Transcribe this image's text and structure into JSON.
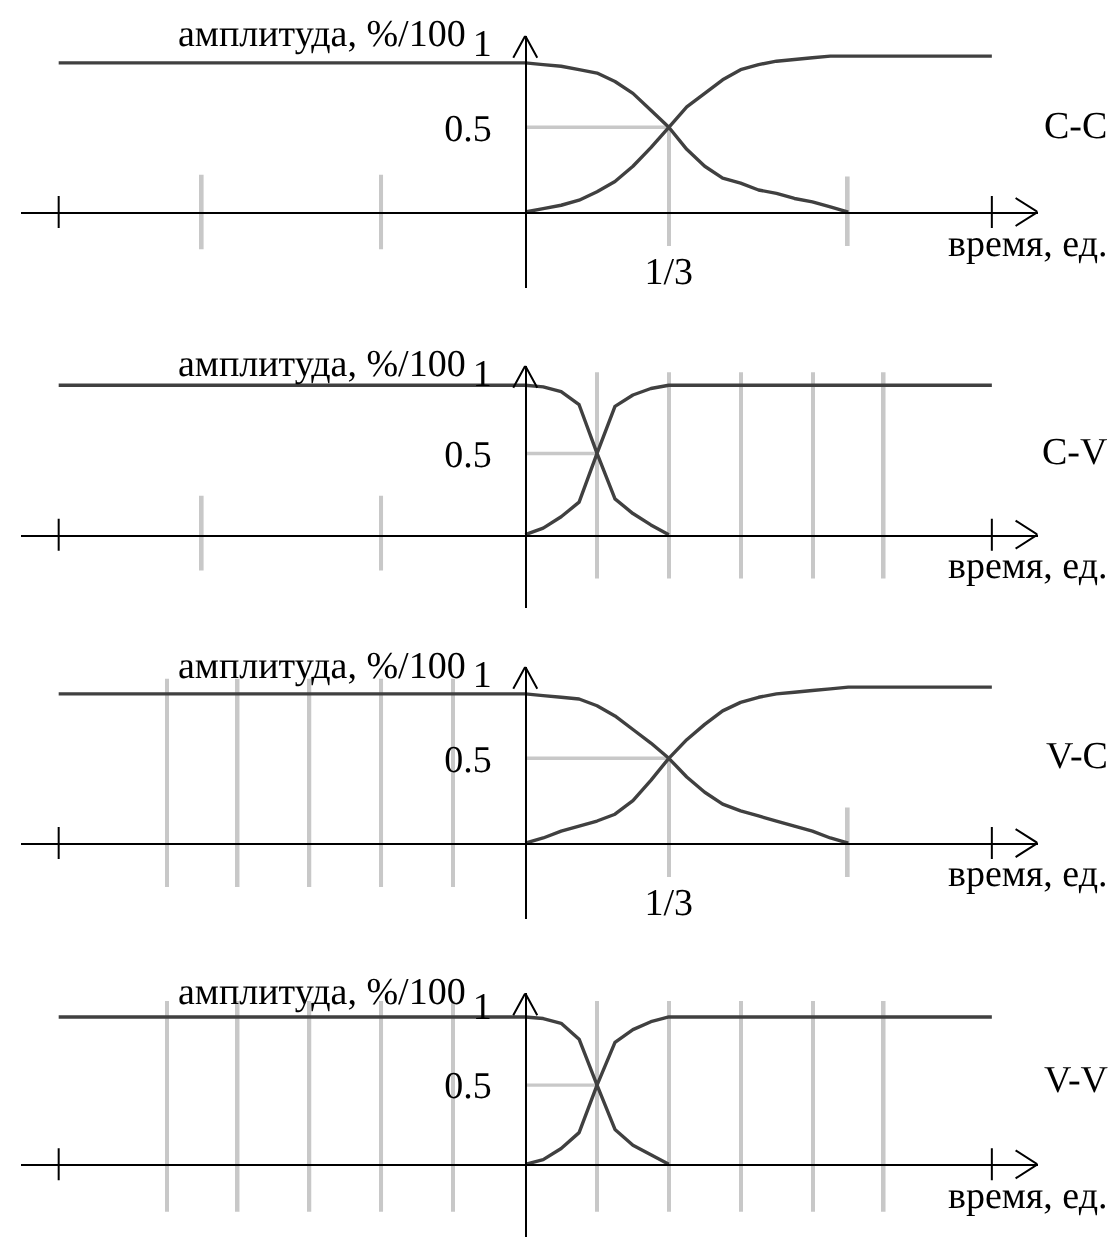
{
  "chart_data": [
    {
      "type": "line",
      "annotations": [
        "C-C"
      ],
      "xlabel": "время, ед.",
      "ylabel": "амплитуда, %/100",
      "ylim": [
        -0.45,
        1.04
      ],
      "yticks": [
        0.5,
        1
      ],
      "grid": false,
      "categories": [
        null,
        null,
        null,
        null,
        null,
        null,
        null,
        null,
        null,
        null,
        null,
        null,
        null,
        null,
        null,
        null,
        null,
        null,
        null,
        null,
        null,
        null,
        null,
        null,
        null,
        null,
        null,
        null,
        null,
        null,
        null,
        null,
        null,
        null,
        "1/3",
        null,
        null,
        null,
        null,
        null,
        null,
        null,
        null,
        null,
        null,
        null,
        null,
        null,
        null,
        null,
        null,
        null,
        null
      ],
      "series": [
        {
          "type": "bar",
          "color": "#c8c8c8",
          "values": [
            null,
            null,
            null,
            null,
            null,
            null,
            null,
            null,
            0.44,
            null,
            null,
            null,
            null,
            null,
            null,
            null,
            null,
            null,
            0.44,
            null,
            null,
            null,
            null,
            null,
            null,
            null,
            null,
            null,
            null,
            null,
            null,
            null,
            null,
            null,
            0.7,
            null,
            null,
            null,
            null,
            null,
            null,
            null,
            null,
            null,
            0.41,
            null,
            null,
            null,
            null,
            null,
            null,
            null,
            null
          ],
          "base": [
            null,
            null,
            null,
            null,
            null,
            null,
            null,
            null,
            -0.22,
            null,
            null,
            null,
            null,
            null,
            null,
            null,
            null,
            null,
            -0.22,
            null,
            null,
            null,
            null,
            null,
            null,
            null,
            null,
            null,
            null,
            null,
            null,
            null,
            null,
            null,
            -0.2,
            null,
            null,
            null,
            null,
            null,
            null,
            null,
            null,
            null,
            -0.2,
            null,
            null,
            null,
            null,
            null,
            null,
            null,
            null
          ]
        },
        {
          "type": "line",
          "color": "#c8c8c8",
          "values": [
            null,
            null,
            null,
            null,
            null,
            null,
            null,
            null,
            null,
            null,
            null,
            null,
            null,
            null,
            null,
            null,
            null,
            null,
            null,
            null,
            null,
            null,
            null,
            null,
            null,
            null,
            0.5,
            0.5,
            0.5,
            0.5,
            0.5,
            0.5,
            0.5,
            0.5,
            0.5,
            null,
            null,
            null,
            null,
            null,
            null,
            null,
            null,
            null,
            null,
            null,
            null,
            null,
            null,
            null,
            null,
            null,
            null
          ]
        },
        {
          "color": "#404040",
          "values": [
            0.88,
            0.88,
            0.88,
            0.88,
            0.88,
            0.88,
            0.88,
            0.88,
            0.88,
            0.88,
            0.88,
            0.88,
            0.88,
            0.88,
            0.88,
            0.88,
            0.88,
            0.88,
            0.88,
            0.88,
            0.88,
            0.88,
            0.88,
            0.88,
            0.88,
            0.88,
            0.88,
            0.87,
            0.86,
            0.84,
            0.82,
            0.77,
            0.7,
            0.6,
            0.5,
            0.37,
            0.27,
            0.2,
            0.17,
            0.13,
            0.11,
            0.08,
            0.06,
            0.03,
            0,
            null,
            null,
            null,
            null,
            null,
            null,
            null,
            null
          ]
        },
        {
          "color": "#404040",
          "values": [
            null,
            null,
            null,
            null,
            null,
            null,
            null,
            null,
            null,
            null,
            null,
            null,
            null,
            null,
            null,
            null,
            null,
            null,
            null,
            null,
            null,
            null,
            null,
            null,
            null,
            null,
            0,
            0.02,
            0.04,
            0.07,
            0.12,
            0.18,
            0.27,
            0.38,
            0.5,
            0.62,
            0.7,
            0.78,
            0.84,
            0.87,
            0.89,
            0.9,
            0.91,
            0.92,
            0.92,
            0.92,
            0.92,
            0.92,
            0.92,
            0.92,
            0.92,
            0.92,
            0.92
          ]
        }
      ]
    },
    {
      "type": "line",
      "annotations": [
        "C-V"
      ],
      "xlabel": "время, ед.",
      "ylabel": "амплитуда, %/100",
      "ylim": [
        -0.45,
        1.04
      ],
      "yticks": [
        0.5,
        1
      ],
      "grid": false,
      "categories": [
        null,
        null,
        null,
        null,
        null,
        null,
        null,
        null,
        null,
        null,
        null,
        null,
        null,
        null,
        null,
        null,
        null,
        null,
        null,
        null,
        null,
        null,
        null,
        null,
        null,
        null,
        null,
        null,
        null,
        null,
        null,
        null,
        null,
        null,
        null,
        null,
        null,
        null,
        null,
        null,
        null,
        null,
        null,
        null,
        null,
        null,
        null,
        null,
        null,
        null,
        null,
        null,
        null
      ],
      "series": [
        {
          "type": "bar",
          "color": "#c8c8c8",
          "values": [
            null,
            null,
            null,
            null,
            null,
            null,
            null,
            null,
            0.46,
            null,
            null,
            null,
            null,
            null,
            null,
            null,
            null,
            null,
            0.46,
            null,
            null,
            null,
            null,
            null,
            null,
            null,
            null,
            null,
            null,
            null,
            1.27,
            null,
            null,
            null,
            1.27,
            null,
            null,
            null,
            1.27,
            null,
            null,
            null,
            1.27,
            null,
            null,
            null,
            1.27,
            null,
            null,
            null,
            null,
            null,
            null
          ],
          "base": [
            null,
            null,
            null,
            null,
            null,
            null,
            null,
            null,
            -0.22,
            null,
            null,
            null,
            null,
            null,
            null,
            null,
            null,
            null,
            -0.22,
            null,
            null,
            null,
            null,
            null,
            null,
            null,
            null,
            null,
            null,
            null,
            -0.27,
            null,
            null,
            null,
            -0.27,
            null,
            null,
            null,
            -0.27,
            null,
            null,
            null,
            -0.27,
            null,
            null,
            null,
            -0.27,
            null,
            null,
            null,
            null,
            null,
            null
          ]
        },
        {
          "type": "line",
          "color": "#c8c8c8",
          "values": [
            null,
            null,
            null,
            null,
            null,
            null,
            null,
            null,
            null,
            null,
            null,
            null,
            null,
            null,
            null,
            null,
            null,
            null,
            null,
            null,
            null,
            null,
            null,
            null,
            null,
            null,
            0.5,
            0.5,
            0.5,
            0.5,
            0.5,
            null,
            null,
            null,
            null,
            null,
            null,
            null,
            null,
            null,
            null,
            null,
            null,
            null,
            null,
            null,
            null,
            null,
            null,
            null,
            null,
            null,
            null
          ]
        },
        {
          "color": "#404040",
          "values": [
            0.92,
            0.92,
            0.92,
            0.92,
            0.92,
            0.92,
            0.92,
            0.92,
            0.92,
            0.92,
            0.92,
            0.92,
            0.92,
            0.92,
            0.92,
            0.92,
            0.92,
            0.92,
            0.92,
            0.92,
            0.92,
            0.92,
            0.92,
            0.92,
            0.92,
            0.92,
            0.92,
            0.91,
            0.88,
            0.8,
            0.5,
            0.22,
            0.13,
            0.06,
            0,
            null,
            null,
            null,
            null,
            null,
            null,
            null,
            null,
            null,
            null,
            null,
            null,
            null,
            null,
            null,
            null,
            null,
            null
          ]
        },
        {
          "color": "#404040",
          "values": [
            null,
            null,
            null,
            null,
            null,
            null,
            null,
            null,
            null,
            null,
            null,
            null,
            null,
            null,
            null,
            null,
            null,
            null,
            null,
            null,
            null,
            null,
            null,
            null,
            null,
            null,
            0,
            0.04,
            0.11,
            0.2,
            0.5,
            0.79,
            0.86,
            0.9,
            0.92,
            0.92,
            0.92,
            0.92,
            0.92,
            0.92,
            0.92,
            0.92,
            0.92,
            0.92,
            0.92,
            0.92,
            0.92,
            0.92,
            0.92,
            0.92,
            0.92,
            0.92,
            0.92
          ]
        }
      ]
    },
    {
      "type": "line",
      "annotations": [
        "V-C"
      ],
      "xlabel": "время, ед.",
      "ylabel": "амплитуда, %/100",
      "ylim": [
        -0.45,
        1.04
      ],
      "yticks": [
        0.5,
        1
      ],
      "grid": false,
      "categories": [
        null,
        null,
        null,
        null,
        null,
        null,
        null,
        null,
        null,
        null,
        null,
        null,
        null,
        null,
        null,
        null,
        null,
        null,
        null,
        null,
        null,
        null,
        null,
        null,
        null,
        null,
        null,
        null,
        null,
        null,
        null,
        null,
        null,
        null,
        "1/3",
        null,
        null,
        null,
        null,
        null,
        null,
        null,
        null,
        null,
        null,
        null,
        null,
        null,
        null,
        null,
        null,
        null,
        null
      ],
      "series": [
        {
          "type": "bar",
          "color": "#c8c8c8",
          "values": [
            null,
            null,
            null,
            null,
            null,
            null,
            1.23,
            null,
            null,
            null,
            1.23,
            null,
            null,
            null,
            1.23,
            null,
            null,
            null,
            1.23,
            null,
            null,
            null,
            1.23,
            null,
            null,
            null,
            null,
            null,
            null,
            null,
            null,
            null,
            null,
            null,
            0.7,
            null,
            null,
            null,
            null,
            null,
            null,
            null,
            null,
            null,
            0.41,
            null,
            null,
            null,
            null,
            null,
            null,
            null,
            null
          ],
          "base": [
            null,
            null,
            null,
            null,
            null,
            null,
            -0.26,
            null,
            null,
            null,
            -0.26,
            null,
            null,
            null,
            -0.26,
            null,
            null,
            null,
            -0.26,
            null,
            null,
            null,
            -0.26,
            null,
            null,
            null,
            null,
            null,
            null,
            null,
            null,
            null,
            null,
            null,
            -0.2,
            null,
            null,
            null,
            null,
            null,
            null,
            null,
            null,
            null,
            -0.2,
            null,
            null,
            null,
            null,
            null,
            null,
            null,
            null
          ]
        },
        {
          "type": "line",
          "color": "#c8c8c8",
          "values": [
            null,
            null,
            null,
            null,
            null,
            null,
            null,
            null,
            null,
            null,
            null,
            null,
            null,
            null,
            null,
            null,
            null,
            null,
            null,
            null,
            null,
            null,
            null,
            null,
            null,
            null,
            0.5,
            0.5,
            0.5,
            0.5,
            0.5,
            0.5,
            0.5,
            0.5,
            0.5,
            null,
            null,
            null,
            null,
            null,
            null,
            null,
            null,
            null,
            null,
            null,
            null,
            null,
            null,
            null,
            null,
            null,
            null
          ]
        },
        {
          "color": "#404040",
          "values": [
            0.88,
            0.88,
            0.88,
            0.88,
            0.88,
            0.88,
            0.88,
            0.88,
            0.88,
            0.88,
            0.88,
            0.88,
            0.88,
            0.88,
            0.88,
            0.88,
            0.88,
            0.88,
            0.88,
            0.88,
            0.88,
            0.88,
            0.88,
            0.88,
            0.88,
            0.88,
            0.88,
            0.87,
            0.86,
            0.85,
            0.81,
            0.75,
            0.67,
            0.59,
            0.5,
            0.39,
            0.3,
            0.23,
            0.19,
            0.16,
            0.13,
            0.1,
            0.07,
            0.03,
            0,
            null,
            null,
            null,
            null,
            null,
            null,
            null,
            null
          ]
        },
        {
          "color": "#404040",
          "values": [
            null,
            null,
            null,
            null,
            null,
            null,
            null,
            null,
            null,
            null,
            null,
            null,
            null,
            null,
            null,
            null,
            null,
            null,
            null,
            null,
            null,
            null,
            null,
            null,
            null,
            null,
            0,
            0.03,
            0.07,
            0.1,
            0.13,
            0.17,
            0.25,
            0.37,
            0.5,
            0.61,
            0.7,
            0.78,
            0.83,
            0.86,
            0.88,
            0.89,
            0.9,
            0.91,
            0.92,
            0.92,
            0.92,
            0.92,
            0.92,
            0.92,
            0.92,
            0.92,
            0.92
          ]
        }
      ]
    },
    {
      "type": "line",
      "annotations": [
        "V-V"
      ],
      "xlabel": "время, ед.",
      "ylabel": "амплитуда, %/100",
      "ylim": [
        -0.46,
        1.08
      ],
      "yticks": [
        0.5,
        1
      ],
      "grid": false,
      "categories": [
        null,
        null,
        null,
        null,
        null,
        null,
        null,
        null,
        null,
        null,
        null,
        null,
        null,
        null,
        null,
        null,
        null,
        null,
        null,
        null,
        null,
        null,
        null,
        null,
        null,
        null,
        null,
        null,
        null,
        null,
        null,
        null,
        null,
        null,
        null,
        null,
        null,
        null,
        null,
        null,
        null,
        null,
        null,
        null,
        null,
        null,
        null,
        null,
        null,
        null,
        null,
        null,
        null
      ],
      "series": [
        {
          "type": "bar",
          "color": "#c8c8c8",
          "values": [
            null,
            null,
            null,
            null,
            null,
            null,
            1.33,
            null,
            null,
            null,
            1.33,
            null,
            null,
            null,
            1.33,
            null,
            null,
            null,
            1.33,
            null,
            null,
            null,
            1.33,
            null,
            null,
            null,
            null,
            null,
            null,
            null,
            1.33,
            null,
            null,
            null,
            1.33,
            null,
            null,
            null,
            1.33,
            null,
            null,
            null,
            1.33,
            null,
            null,
            null,
            1.33,
            null,
            null,
            null,
            null,
            null,
            null
          ],
          "base": [
            null,
            null,
            null,
            null,
            null,
            null,
            -0.3,
            null,
            null,
            null,
            -0.3,
            null,
            null,
            null,
            -0.3,
            null,
            null,
            null,
            -0.3,
            null,
            null,
            null,
            -0.3,
            null,
            null,
            null,
            null,
            null,
            null,
            null,
            -0.3,
            null,
            null,
            null,
            -0.3,
            null,
            null,
            null,
            -0.3,
            null,
            null,
            null,
            -0.3,
            null,
            null,
            null,
            -0.3,
            null,
            null,
            null,
            null,
            null,
            null
          ]
        },
        {
          "type": "line",
          "color": "#c8c8c8",
          "values": [
            null,
            null,
            null,
            null,
            null,
            null,
            null,
            null,
            null,
            null,
            null,
            null,
            null,
            null,
            null,
            null,
            null,
            null,
            null,
            null,
            null,
            null,
            null,
            null,
            null,
            null,
            0.5,
            0.5,
            0.5,
            0.5,
            0.5,
            null,
            null,
            null,
            null,
            null,
            null,
            null,
            null,
            null,
            null,
            null,
            null,
            null,
            null,
            null,
            null,
            null,
            null,
            null,
            null,
            null,
            null
          ]
        },
        {
          "color": "#404040",
          "values": [
            0.93,
            0.93,
            0.93,
            0.93,
            0.93,
            0.93,
            0.93,
            0.93,
            0.93,
            0.93,
            0.93,
            0.93,
            0.93,
            0.93,
            0.93,
            0.93,
            0.93,
            0.93,
            0.93,
            0.93,
            0.93,
            0.93,
            0.93,
            0.93,
            0.93,
            0.93,
            0.93,
            0.92,
            0.89,
            0.79,
            0.5,
            0.22,
            0.12,
            0.06,
            0,
            null,
            null,
            null,
            null,
            null,
            null,
            null,
            null,
            null,
            null,
            null,
            null,
            null,
            null,
            null,
            null,
            null,
            null
          ]
        },
        {
          "color": "#404040",
          "values": [
            null,
            null,
            null,
            null,
            null,
            null,
            null,
            null,
            null,
            null,
            null,
            null,
            null,
            null,
            null,
            null,
            null,
            null,
            null,
            null,
            null,
            null,
            null,
            null,
            null,
            null,
            0,
            0.03,
            0.1,
            0.2,
            0.5,
            0.77,
            0.85,
            0.9,
            0.93,
            0.93,
            0.93,
            0.93,
            0.93,
            0.93,
            0.93,
            0.93,
            0.93,
            0.93,
            0.93,
            0.93,
            0.93,
            0.93,
            0.93,
            0.93,
            0.93,
            0.93,
            0.93
          ]
        }
      ]
    }
  ]
}
